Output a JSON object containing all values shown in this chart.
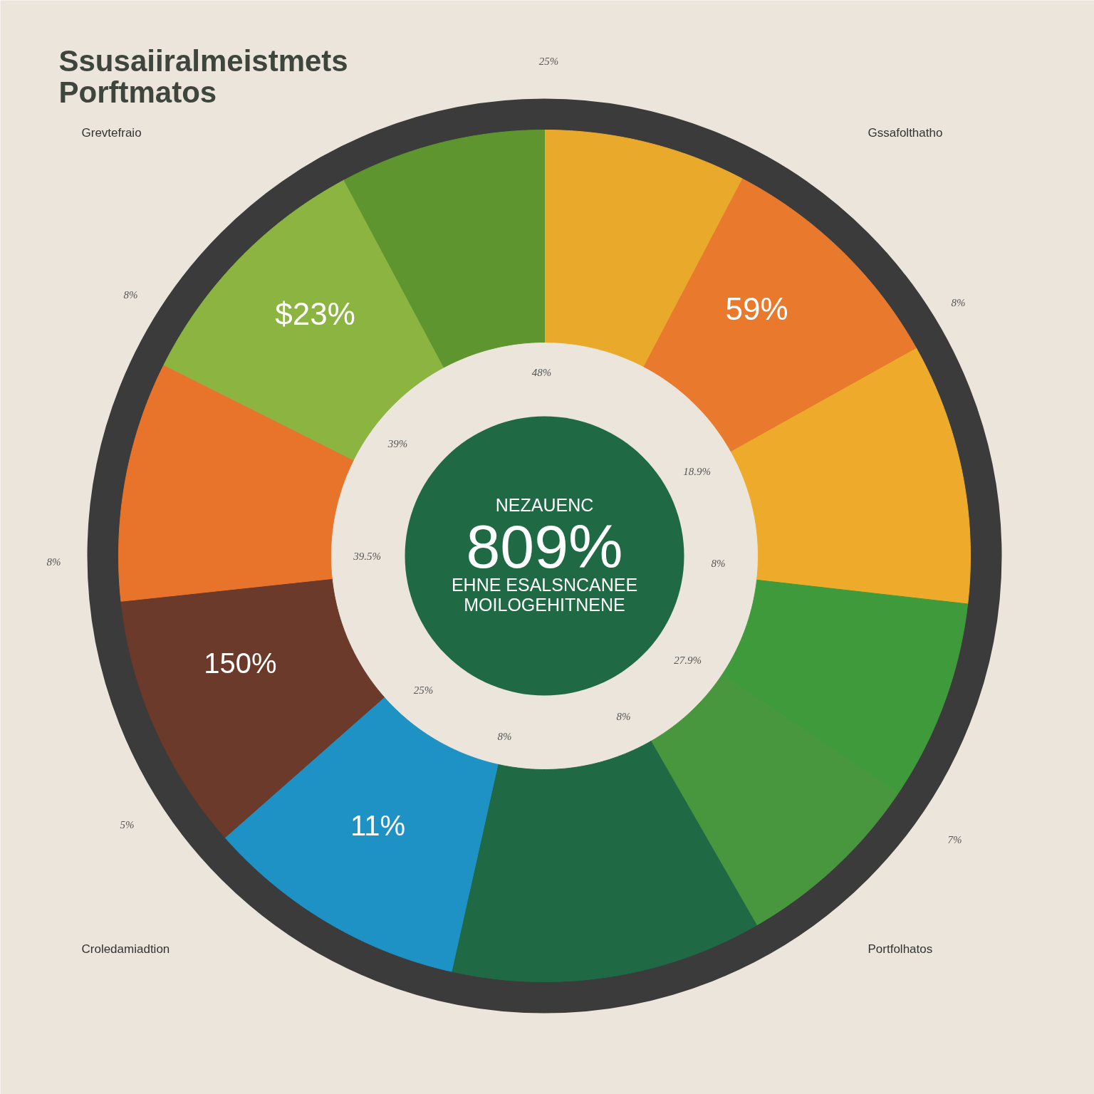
{
  "chart_data": {
    "type": "donut",
    "title": "Ssusaiiralmeistmets Porftmatos",
    "categories": [
      null,
      null,
      null,
      null,
      null,
      null,
      null,
      null,
      null,
      null,
      null
    ],
    "values": [
      7.7,
      9.2,
      9.9,
      7.6,
      7.3,
      11.8,
      10.0,
      9.8,
      9.1,
      9.8,
      7.8
    ],
    "colors": [
      "#e9a92b",
      "#e8792d",
      "#eeab2b",
      "#3f9a3c",
      "#48973f",
      "#1f6a45",
      "#1e92c4",
      "#6b3a2b",
      "#e8742c",
      "#8cb441",
      "#5e952f"
    ],
    "annotations": [
      "Grevtefraio",
      "Gssafolthatho",
      "Croledamiadtion",
      "Portfolhatos",
      "NEZAUENC",
      "809%",
      "EHNE ESALSNCANEE",
      "MOILOGEHITNENE",
      "48%",
      "39%",
      "18.9%",
      "8%",
      "27.9%",
      "8%",
      "8%",
      "25%",
      "39.5%",
      "25%",
      "8%",
      "8%",
      "8%",
      "5%",
      "7%",
      "$23%",
      "59%",
      "150%",
      "11%"
    ]
  }
}
